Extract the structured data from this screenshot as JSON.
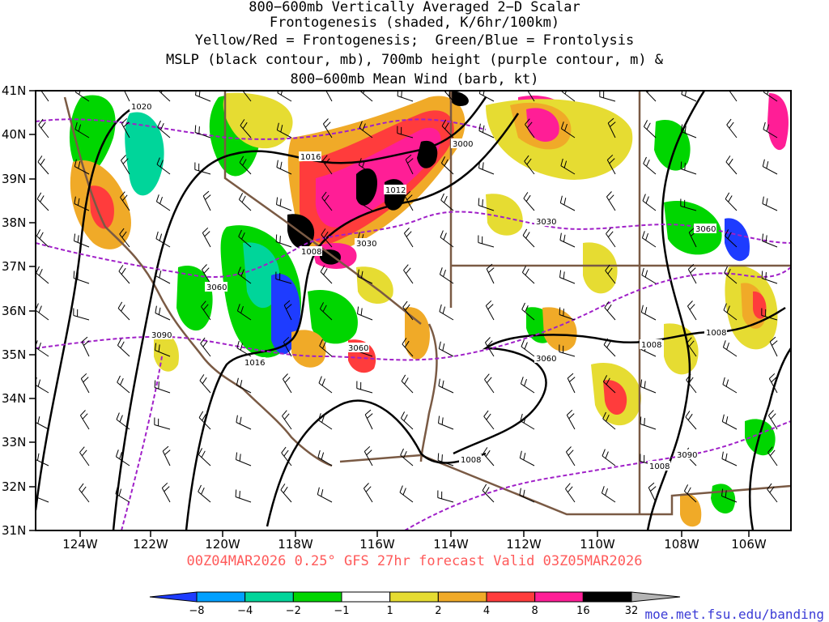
{
  "title_lines": [
    "800−600mb Vertically Averaged 2−D Scalar",
    "Frontogenesis (shaded, K/6hr/100km)",
    "Yellow/Red = Frontogenesis;  Green/Blue = Frontolysis",
    "MSLP (black contour, mb), 700mb height (purple contour, m) &",
    "800−600mb Mean Wind (barb, kt)"
  ],
  "lat_labels": [
    "41N",
    "40N",
    "39N",
    "38N",
    "37N",
    "36N",
    "35N",
    "34N",
    "33N",
    "32N",
    "31N"
  ],
  "lon_labels": [
    "124W",
    "122W",
    "120W",
    "118W",
    "116W",
    "114W",
    "112W",
    "110W",
    "108W",
    "106W"
  ],
  "footer": "00Z04MAR2026 0.25° GFS 27hr forecast Valid 03Z05MAR2026",
  "credit": "moe.met.fsu.edu/banding",
  "colorbar": {
    "labels": [
      "−8",
      "−4",
      "−2",
      "−1",
      "1",
      "2",
      "4",
      "8",
      "16",
      "32"
    ],
    "colors": [
      "#1e3cff",
      "#00a0ff",
      "#00d59a",
      "#00d600",
      "#ffffff",
      "#e6dc32",
      "#f0aa28",
      "#ff3c3c",
      "#ff1e96",
      "#000000",
      "#b4b4b4"
    ]
  },
  "mslp_labels": [
    "1020",
    "1016",
    "1012",
    "1008",
    "1016",
    "1008",
    "1008",
    "1008",
    "1008"
  ],
  "height_labels": [
    "3000",
    "3030",
    "3030",
    "3060",
    "3090",
    "3060",
    "3060",
    "3060",
    "3090"
  ],
  "colors": {
    "mslp": "#000000",
    "height": "#a020c8",
    "border": "#7a5a44",
    "footer": "#ff5a5a",
    "credit": "#3b3bd6"
  }
}
